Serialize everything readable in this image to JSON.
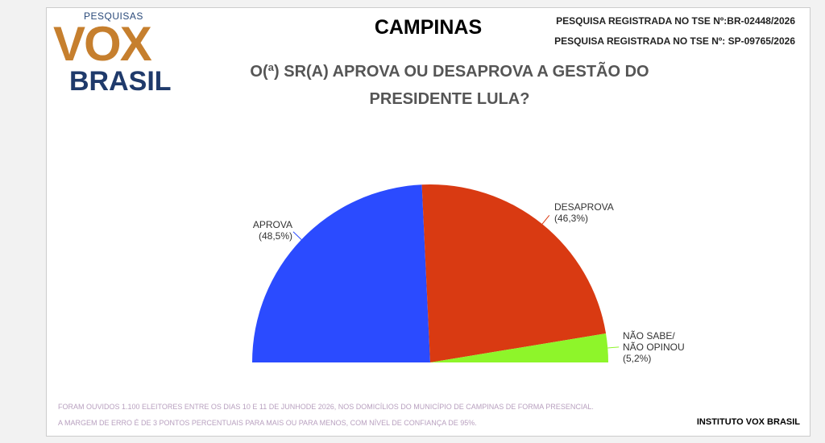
{
  "logo": {
    "top": "PESQUISAS",
    "main": "VOX",
    "bottom": "BRASIL"
  },
  "registrations": [
    "PESQUISA REGISTRADA NO TSE Nº:BR-02448/2026",
    "PESQUISA REGISTRADA NO TSE Nº: SP-09765/2026"
  ],
  "chart_data": {
    "type": "half-pie",
    "title": "CAMPINAS",
    "subtitle": "O(ª) SR(A) APROVA OU DESAPROVA A GESTÃO DO PRESIDENTE LULA?",
    "categories": [
      "APROVA",
      "DESAPROVA",
      "NÃO SABE/ NÃO OPINOU"
    ],
    "values": [
      48.5,
      46.3,
      5.2
    ],
    "value_labels": [
      "(48,5%)",
      "(46,3%)",
      "(5,2%)"
    ],
    "colors": [
      "#2b4bff",
      "#d93a12",
      "#8ef52a"
    ]
  },
  "notes": [
    "FORAM OUVIDOS 1.100 ELEITORES ENTRE OS DIAS 10 E 11 DE JUNHODE 2026, NOS DOMICÍLIOS DO MUNICÍPIO DE CAMPINAS DE FORMA PRESENCIAL.",
    "A MARGEM DE ERRO É DE 3 PONTOS PERCENTUAIS PARA MAIS OU PARA MENOS, COM NÍVEL DE CONFIANÇA DE 95%."
  ],
  "source": "INSTITUTO VOX BRASIL"
}
